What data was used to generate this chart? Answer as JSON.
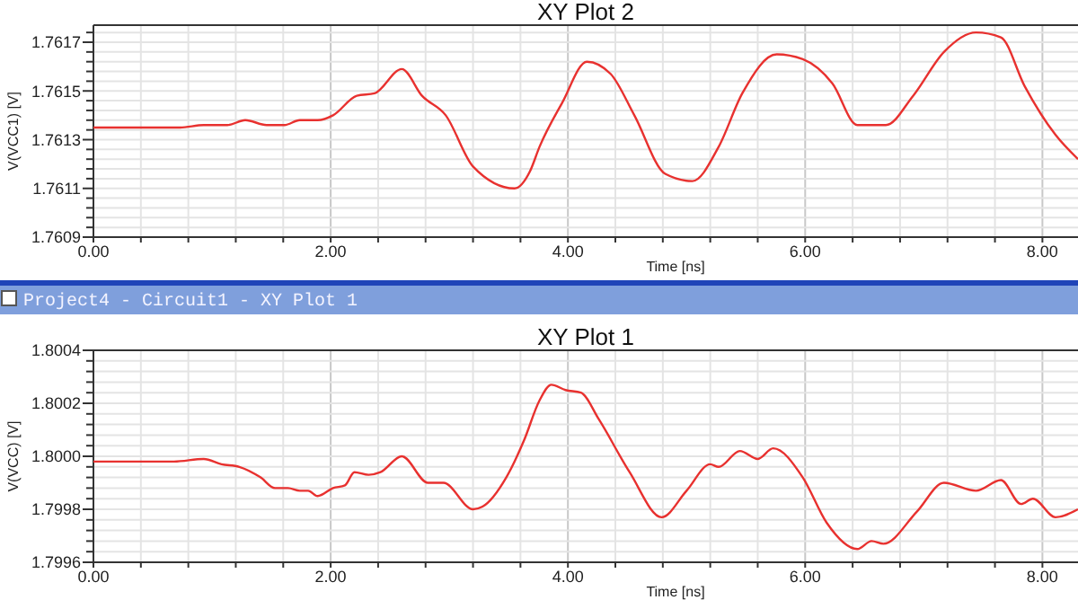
{
  "chart_data": [
    {
      "type": "line",
      "title": "XY Plot 2",
      "xlabel": "Time [ns]",
      "ylabel": "V(VCC1) [V]",
      "xlim": [
        0,
        8.3
      ],
      "ylim": [
        1.7609,
        1.76177
      ],
      "grid": true,
      "marker": "none",
      "line_style": "solid",
      "xticks": [
        {
          "value": 0,
          "label": "0.00"
        },
        {
          "value": 0.4,
          "label": null
        },
        {
          "value": 0.8,
          "label": null
        },
        {
          "value": 1.2,
          "label": null
        },
        {
          "value": 1.6,
          "label": null
        },
        {
          "value": 2,
          "label": "2.00"
        },
        {
          "value": 2.4,
          "label": null
        },
        {
          "value": 2.8,
          "label": null
        },
        {
          "value": 3.2,
          "label": null
        },
        {
          "value": 3.6,
          "label": null
        },
        {
          "value": 4,
          "label": "4.00"
        },
        {
          "value": 4.4,
          "label": null
        },
        {
          "value": 4.8,
          "label": null
        },
        {
          "value": 5.2,
          "label": null
        },
        {
          "value": 5.6,
          "label": null
        },
        {
          "value": 6,
          "label": "6.00"
        },
        {
          "value": 6.4,
          "label": null
        },
        {
          "value": 6.8,
          "label": null
        },
        {
          "value": 7.2,
          "label": null
        },
        {
          "value": 7.6,
          "label": null
        },
        {
          "value": 8,
          "label": "8.00"
        }
      ],
      "yticks": [
        {
          "value": 1.7609,
          "label": "1.7609"
        },
        {
          "value": 1.76094,
          "label": null
        },
        {
          "value": 1.76098,
          "label": null
        },
        {
          "value": 1.76102,
          "label": null
        },
        {
          "value": 1.76106,
          "label": null
        },
        {
          "value": 1.7611,
          "label": "1.7611"
        },
        {
          "value": 1.76114,
          "label": null
        },
        {
          "value": 1.76118,
          "label": null
        },
        {
          "value": 1.76122,
          "label": null
        },
        {
          "value": 1.76126,
          "label": null
        },
        {
          "value": 1.7613,
          "label": "1.7613"
        },
        {
          "value": 1.76134,
          "label": null
        },
        {
          "value": 1.76138,
          "label": null
        },
        {
          "value": 1.76142,
          "label": null
        },
        {
          "value": 1.76146,
          "label": null
        },
        {
          "value": 1.7615,
          "label": "1.7615"
        },
        {
          "value": 1.76154,
          "label": null
        },
        {
          "value": 1.76158,
          "label": null
        },
        {
          "value": 1.76162,
          "label": null
        },
        {
          "value": 1.76166,
          "label": null
        },
        {
          "value": 1.7617,
          "label": "1.7617"
        },
        {
          "value": 1.76174,
          "label": null
        }
      ],
      "series": [
        {
          "color": "#e8312f",
          "x": [
            0,
            0.73,
            0.93,
            1.13,
            1.28,
            1.46,
            1.61,
            1.74,
            1.89,
            2.02,
            2.22,
            2.37,
            2.6,
            2.77,
            2.97,
            3.2,
            3.55,
            3.68,
            3.76,
            3.95,
            4.16,
            4.36,
            4.56,
            4.82,
            5.05,
            5.27,
            5.47,
            5.76,
            5.98,
            6.23,
            6.44,
            6.68,
            6.91,
            7.17,
            7.44,
            7.65,
            7.85,
            8.11,
            8.3
          ],
          "values": [
            1.76135,
            1.76135,
            1.76136,
            1.76136,
            1.76138,
            1.76136,
            1.76136,
            1.76138,
            1.76138,
            1.7614,
            1.76148,
            1.76149,
            1.76159,
            1.76148,
            1.7614,
            1.76119,
            1.7611,
            1.76117,
            1.76127,
            1.76145,
            1.76162,
            1.76157,
            1.7614,
            1.76116,
            1.76113,
            1.76127,
            1.76149,
            1.76165,
            1.76163,
            1.76153,
            1.76136,
            1.76136,
            1.76148,
            1.76166,
            1.76174,
            1.76172,
            1.76152,
            1.76132,
            1.76122
          ]
        }
      ]
    },
    {
      "type": "line",
      "title": "XY Plot 1",
      "xlabel": "Time [ns]",
      "ylabel": "V(VCC) [V]",
      "xlim": [
        0,
        8.3
      ],
      "ylim": [
        1.7996,
        1.8004
      ],
      "grid": true,
      "marker": "none",
      "line_style": "solid",
      "annotations": [
        "Project4 - Circuit1 - XY Plot 1"
      ],
      "xticks": [
        {
          "value": 0,
          "label": "0.00"
        },
        {
          "value": 0.4,
          "label": null
        },
        {
          "value": 0.8,
          "label": null
        },
        {
          "value": 1.2,
          "label": null
        },
        {
          "value": 1.6,
          "label": null
        },
        {
          "value": 2,
          "label": "2.00"
        },
        {
          "value": 2.4,
          "label": null
        },
        {
          "value": 2.8,
          "label": null
        },
        {
          "value": 3.2,
          "label": null
        },
        {
          "value": 3.6,
          "label": null
        },
        {
          "value": 4,
          "label": "4.00"
        },
        {
          "value": 4.4,
          "label": null
        },
        {
          "value": 4.8,
          "label": null
        },
        {
          "value": 5.2,
          "label": null
        },
        {
          "value": 5.6,
          "label": null
        },
        {
          "value": 6,
          "label": "6.00"
        },
        {
          "value": 6.4,
          "label": null
        },
        {
          "value": 6.8,
          "label": null
        },
        {
          "value": 7.2,
          "label": null
        },
        {
          "value": 7.6,
          "label": null
        },
        {
          "value": 8,
          "label": "8.00"
        }
      ],
      "yticks": [
        {
          "value": 1.7996,
          "label": "1.7996"
        },
        {
          "value": 1.79964,
          "label": null
        },
        {
          "value": 1.79968,
          "label": null
        },
        {
          "value": 1.79972,
          "label": null
        },
        {
          "value": 1.79976,
          "label": null
        },
        {
          "value": 1.7998,
          "label": "1.7998"
        },
        {
          "value": 1.79984,
          "label": null
        },
        {
          "value": 1.79988,
          "label": null
        },
        {
          "value": 1.79992,
          "label": null
        },
        {
          "value": 1.79996,
          "label": null
        },
        {
          "value": 1.8,
          "label": "1.8000"
        },
        {
          "value": 1.80004,
          "label": null
        },
        {
          "value": 1.80008,
          "label": null
        },
        {
          "value": 1.80012,
          "label": null
        },
        {
          "value": 1.80016,
          "label": null
        },
        {
          "value": 1.8002,
          "label": "1.8002"
        },
        {
          "value": 1.80024,
          "label": null
        },
        {
          "value": 1.80028,
          "label": null
        },
        {
          "value": 1.80032,
          "label": null
        },
        {
          "value": 1.80036,
          "label": null
        },
        {
          "value": 1.8004,
          "label": "1.8004"
        }
      ],
      "series": [
        {
          "color": "#e8312f",
          "x": [
            0,
            0.68,
            0.93,
            1.08,
            1.23,
            1.41,
            1.53,
            1.64,
            1.74,
            1.81,
            1.89,
            2.02,
            2.12,
            2.2,
            2.32,
            2.42,
            2.6,
            2.82,
            2.95,
            3.2,
            3.28,
            3.48,
            3.63,
            3.76,
            3.86,
            3.98,
            4.11,
            4.26,
            4.52,
            4.79,
            5.0,
            5.2,
            5.27,
            5.45,
            5.6,
            5.73,
            5.98,
            6.18,
            6.44,
            6.56,
            6.66,
            6.94,
            7.17,
            7.44,
            7.65,
            7.82,
            7.92,
            8.11,
            8.3
          ],
          "values": [
            1.79998,
            1.79998,
            1.79999,
            1.79997,
            1.79996,
            1.79992,
            1.79988,
            1.79988,
            1.79987,
            1.79987,
            1.79985,
            1.79988,
            1.79989,
            1.79994,
            1.79993,
            1.79994,
            1.8,
            1.7999,
            1.7999,
            1.7998,
            1.79981,
            1.79992,
            1.80006,
            1.80021,
            1.80027,
            1.80025,
            1.80024,
            1.80014,
            1.79994,
            1.79977,
            1.79987,
            1.79997,
            1.79996,
            1.80002,
            1.79999,
            1.80003,
            1.79992,
            1.79975,
            1.79965,
            1.79968,
            1.79967,
            1.79979,
            1.7999,
            1.79987,
            1.79991,
            1.79982,
            1.79984,
            1.79977,
            1.7998
          ]
        }
      ]
    }
  ]
}
